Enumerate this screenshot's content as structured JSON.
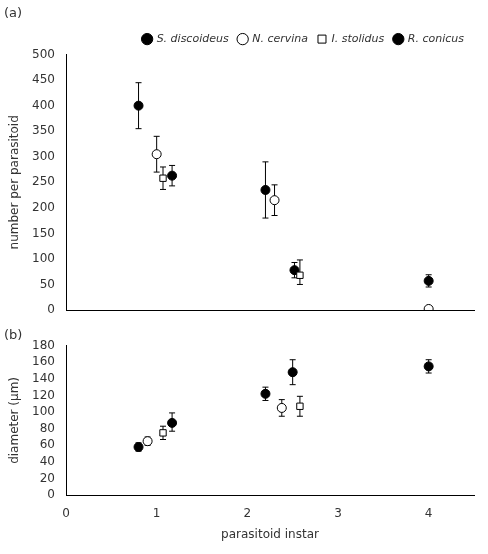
{
  "chart_data": [
    {
      "type": "scatter",
      "title": "(a)",
      "ylabel": "number per parasitoid",
      "xlim": [
        0,
        4.5
      ],
      "xticks": [
        0,
        1,
        2,
        3,
        4
      ],
      "ylim": [
        0,
        500
      ],
      "yticks": [
        0,
        50,
        100,
        150,
        200,
        250,
        300,
        350,
        400,
        450,
        500
      ],
      "grid": false,
      "legend": "upper right",
      "tick_labels": "y",
      "series": [
        {
          "name": "S. discoideus",
          "marker": "circle-filled",
          "x": [
            0.8,
            2.2,
            4.0
          ],
          "values": [
            400,
            235,
            57
          ],
          "yerr_lo": [
            45,
            55,
            12
          ],
          "yerr_hi": [
            45,
            55,
            12
          ]
        },
        {
          "name": "N. cervina",
          "marker": "circle-open",
          "x": [
            1.0,
            2.3,
            4.0
          ],
          "values": [
            305,
            215,
            2
          ],
          "yerr_lo": [
            35,
            30,
            2
          ],
          "yerr_hi": [
            35,
            30,
            2
          ]
        },
        {
          "name": "I. stolidus",
          "marker": "square-open",
          "x": [
            1.07,
            2.58
          ],
          "values": [
            258,
            68
          ],
          "yerr_lo": [
            22,
            18
          ],
          "yerr_hi": [
            22,
            30
          ]
        },
        {
          "name": "R. conicus",
          "marker": "circle-filled",
          "x": [
            1.17,
            2.52
          ],
          "values": [
            263,
            78
          ],
          "yerr_lo": [
            20,
            15
          ],
          "yerr_hi": [
            20,
            15
          ]
        }
      ]
    },
    {
      "type": "scatter",
      "title": "(b)",
      "ylabel": "diameter (μm)",
      "xlabel": "parasitoid instar",
      "xlim": [
        0,
        4.5
      ],
      "xticks": [
        0,
        1,
        2,
        3,
        4
      ],
      "ylim": [
        0,
        180
      ],
      "yticks": [
        0,
        20,
        40,
        60,
        80,
        100,
        120,
        140,
        160,
        180
      ],
      "grid": false,
      "series": [
        {
          "marker": "circle-filled",
          "x": [
            0.8,
            2.2,
            4.0
          ],
          "values": [
            58,
            122,
            155
          ],
          "yerr_lo": [
            5,
            8,
            8
          ],
          "yerr_hi": [
            5,
            8,
            8
          ]
        },
        {
          "marker": "circle-open",
          "x": [
            0.9,
            2.38
          ],
          "values": [
            65,
            105
          ],
          "yerr_lo": [
            5,
            10
          ],
          "yerr_hi": [
            5,
            10
          ]
        },
        {
          "marker": "square-open",
          "x": [
            1.07,
            2.58
          ],
          "values": [
            75,
            107
          ],
          "yerr_lo": [
            8,
            12
          ],
          "yerr_hi": [
            8,
            12
          ]
        },
        {
          "marker": "circle-filled",
          "x": [
            1.17,
            2.5
          ],
          "values": [
            87,
            148
          ],
          "yerr_lo": [
            10,
            15
          ],
          "yerr_hi": [
            12,
            15
          ]
        }
      ]
    }
  ]
}
